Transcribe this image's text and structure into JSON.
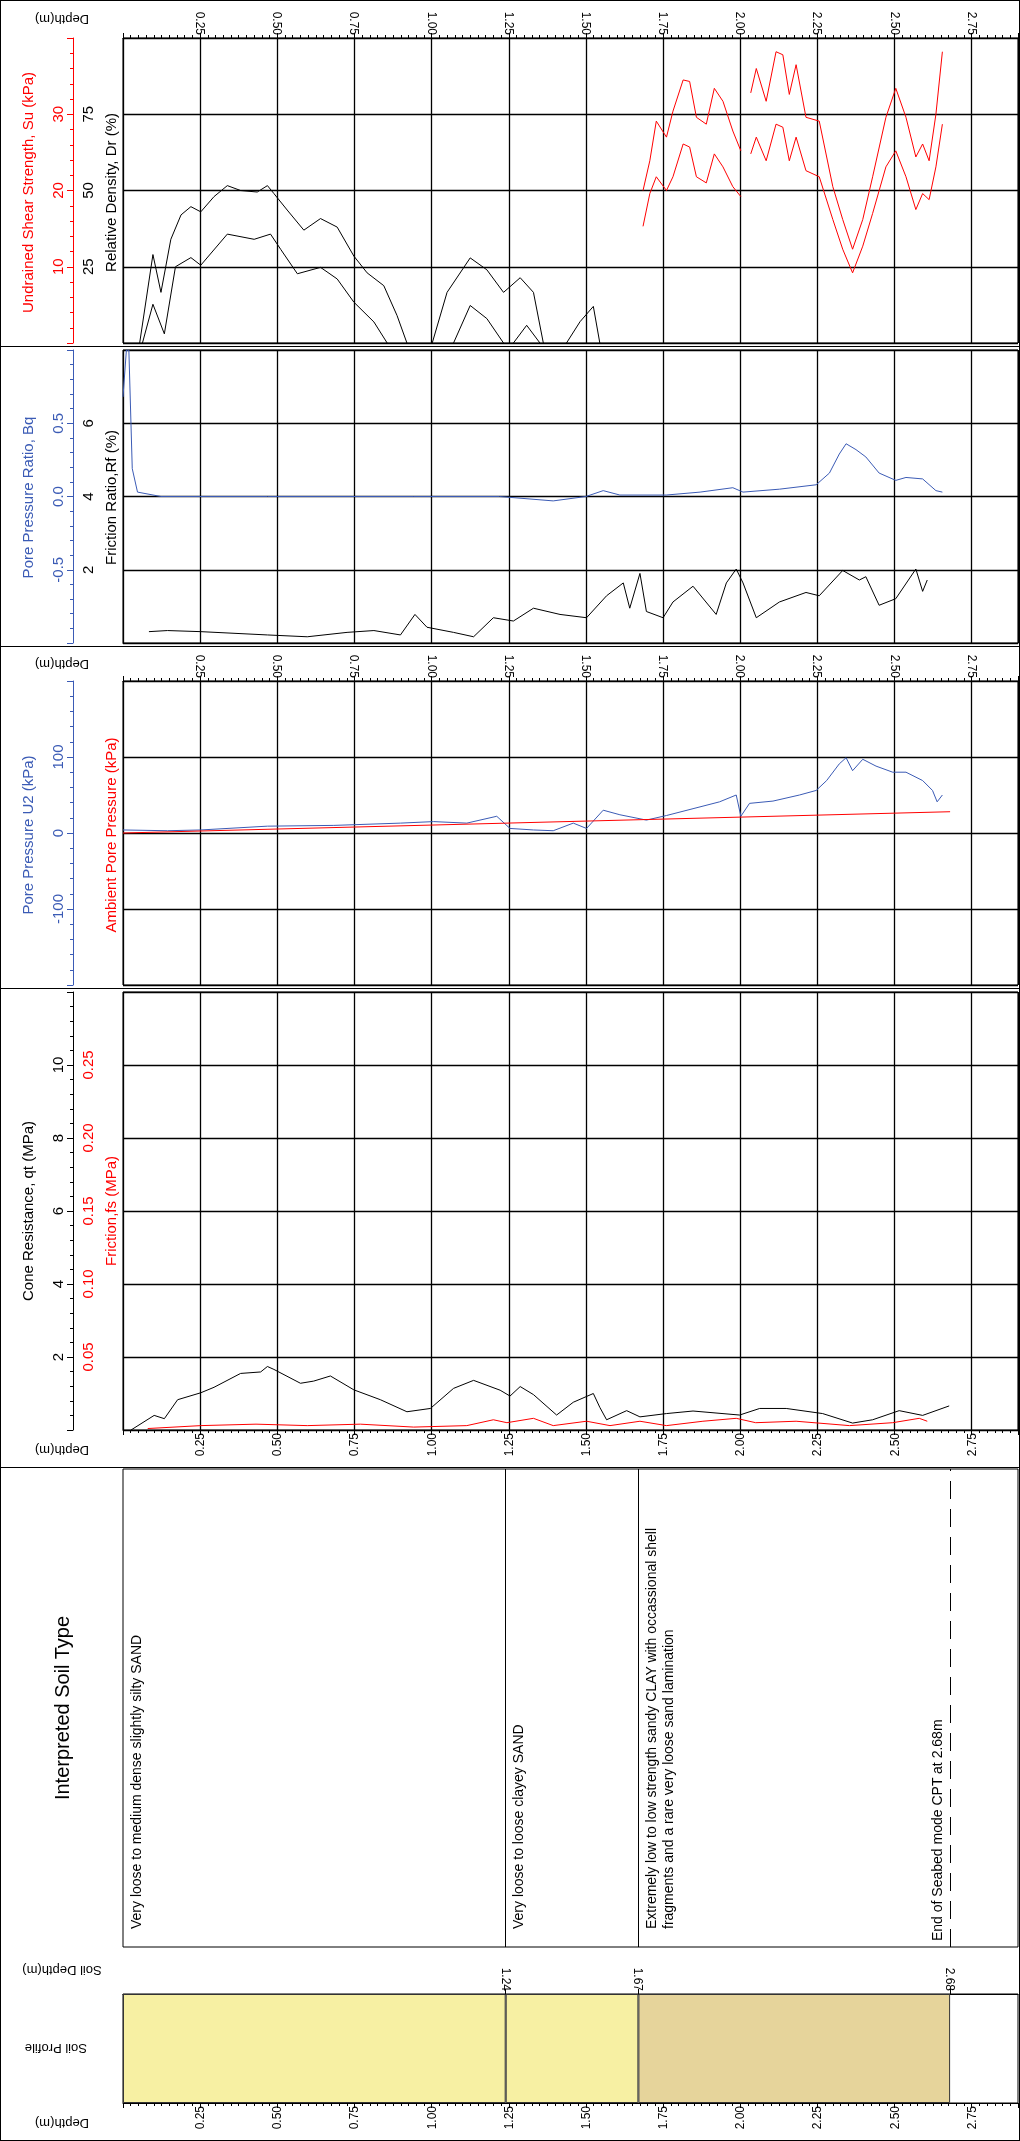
{
  "chart_data": [
    {
      "type": "line",
      "xlabel": "Depth(m)",
      "ylabel": "Relative Density, Dr (%)",
      "y2label": "Undrained Shear Strength, Su (kPa)",
      "xlim": [
        0,
        2.9
      ],
      "xticks": [
        0.25,
        {
          "value": 0.5,
          "label": "0.50"
        },
        0.75,
        {
          "value": 1,
          "label": "1.00"
        },
        1.25,
        {
          "value": 1.5,
          "label": "1.50"
        },
        1.75,
        {
          "value": 2,
          "label": "2.00"
        },
        2.25,
        {
          "value": 2.5,
          "label": "2.50"
        },
        2.75
      ],
      "ylim": [
        0,
        100
      ],
      "yticks": [
        25,
        50,
        75
      ],
      "y2lim": [
        0,
        40
      ],
      "y2ticks": [
        10,
        20,
        30
      ],
      "grid": true,
      "series": [
        {
          "color": "#000000",
          "x": [
            0.054,
            0.097,
            0.123,
            0.155,
            0.188,
            0.22,
            0.252,
            0.295,
            0.338,
            0.381,
            0.435,
            0.468,
            0.489,
            0.532,
            0.586,
            0.64,
            0.694,
            0.748,
            0.791,
            0.845,
            0.888,
            0.92,
            0.96,
            1.002,
            1.05,
            1.125,
            1.179,
            1.233,
            1.287,
            1.33,
            1.362,
            1.4,
            1.437,
            1.481,
            1.524,
            1.545
          ],
          "values": [
            0,
            29,
            16.6,
            34,
            42,
            44.7,
            43,
            48,
            51.6,
            50,
            49.5,
            51.6,
            49,
            43.6,
            37,
            40.8,
            38,
            28.5,
            23,
            18.8,
            9,
            0,
            null,
            0,
            16.6,
            27.9,
            24,
            16.6,
            21.4,
            16.6,
            0,
            null,
            0,
            7,
            12,
            0
          ]
        },
        {
          "color": "#000000",
          "x": [
            0.063,
            0.097,
            0.134,
            0.17,
            0.22,
            0.252,
            0.338,
            0.425,
            0.478,
            0.511,
            0.565,
            0.64,
            0.694,
            0.748,
            0.813,
            0.856,
            0.95,
            1.071,
            1.125,
            1.179,
            1.233,
            1.25,
            1.265,
            1.308,
            1.351
          ],
          "values": [
            0,
            12.7,
            3,
            25,
            28,
            25.5,
            35.7,
            34,
            35.7,
            30.7,
            22.7,
            24.8,
            21,
            13.4,
            6.9,
            0,
            null,
            0,
            12.3,
            8,
            0,
            null,
            0,
            5.8,
            0
          ]
        },
        {
          "color": "#ff0000",
          "axis": "y2",
          "x": [
            1.685,
            1.707,
            1.728,
            1.761,
            1.782,
            1.815,
            1.836,
            1.858,
            1.89,
            1.916,
            1.944,
            1.976,
            2.002,
            2.018,
            2.034,
            2.052,
            2.084,
            2.116,
            2.138,
            2.159,
            2.181,
            2.213,
            2.256,
            2.3,
            2.332,
            2.364,
            2.397,
            2.429,
            2.472,
            2.504,
            2.537,
            2.569,
            2.591,
            2.612,
            2.634,
            2.655
          ],
          "values": [
            20,
            23.9,
            29.1,
            27,
            30.4,
            34.5,
            34.3,
            29.6,
            28.7,
            33.4,
            31.7,
            27.8,
            25.2,
            null,
            32.8,
            36,
            31.7,
            38.2,
            37.8,
            32.6,
            36.5,
            29.6,
            29.1,
            20.5,
            16.2,
            12.3,
            16.2,
            21.8,
            29.6,
            33.4,
            29.6,
            24.4,
            26.1,
            23.9,
            30,
            38.2
          ]
        },
        {
          "color": "#ff0000",
          "axis": "y2",
          "x": [
            1.685,
            1.707,
            1.728,
            1.761,
            1.782,
            1.815,
            1.836,
            1.858,
            1.89,
            1.916,
            1.944,
            1.976,
            2.002,
            2.018,
            2.034,
            2.052,
            2.084,
            2.116,
            2.138,
            2.159,
            2.181,
            2.213,
            2.256,
            2.3,
            2.332,
            2.364,
            2.397,
            2.429,
            2.472,
            2.504,
            2.537,
            2.569,
            2.591,
            2.612,
            2.634,
            2.655
          ],
          "values": [
            15.3,
            19.6,
            21.8,
            20,
            21.8,
            26.1,
            25.7,
            21.8,
            21,
            24.8,
            23.1,
            20.5,
            19.2,
            null,
            24.8,
            27,
            23.9,
            28.7,
            28.3,
            23.9,
            27,
            22.6,
            21.8,
            16.2,
            12.3,
            9.2,
            12.7,
            17,
            23.1,
            25.2,
            21.8,
            17.5,
            19.6,
            18.8,
            23.1,
            28.7
          ]
        }
      ]
    },
    {
      "type": "line",
      "ylabel": "Friction Ratio,Rf (%)",
      "y2label": "Pore Pressure Ratio, Bq",
      "xlim": [
        0,
        2.9
      ],
      "xticks": [
        0.25,
        0.5,
        0.75,
        1,
        1.25,
        1.5,
        1.75,
        2,
        2.25,
        2.5,
        2.75
      ],
      "ylim": [
        0,
        8
      ],
      "yticks": [
        2,
        4,
        6
      ],
      "y2lim": [
        -1,
        1
      ],
      "y2ticks": [
        -0.5,
        {
          "value": 0,
          "label": "0.0"
        },
        0.5
      ],
      "grid": true,
      "tick_labels": "y",
      "series": [
        {
          "color": "#000000",
          "x": [
            0.084,
            0.144,
            0.252,
            0.468,
            0.597,
            0.726,
            0.813,
            0.899,
            0.946,
            0.985,
            1.071,
            1.136,
            1.2,
            1.265,
            1.33,
            1.416,
            1.502,
            1.567,
            1.621,
            1.642,
            1.675,
            1.696,
            1.75,
            1.782,
            1.847,
            1.922,
            1.955,
            1.987,
            2.009,
            2.052,
            2.127,
            2.213,
            2.256,
            2.332,
            2.386,
            2.407,
            2.45,
            2.504,
            2.569,
            2.591,
            2.606
          ],
          "values": [
            0.31,
            0.34,
            0.31,
            0.22,
            0.17,
            0.29,
            0.34,
            0.22,
            0.78,
            0.43,
            0.29,
            0.17,
            0.69,
            0.6,
            0.95,
            0.78,
            0.69,
            1.29,
            1.64,
            0.95,
            1.9,
            0.86,
            0.69,
            1.12,
            1.55,
            0.78,
            1.64,
            2.02,
            1.64,
            0.69,
            1.12,
            1.38,
            1.29,
            1.98,
            1.72,
            1.81,
            1.03,
            1.21,
            2.02,
            1.41,
            1.72
          ]
        },
        {
          "color": "#3b5bb5",
          "axis": "y2",
          "x": [
            0,
            0.011,
            0.019,
            0.03,
            0.047,
            0.123,
            0.468,
            0.94,
            1.22,
            1.394,
            1.5,
            1.556,
            1.61,
            1.76,
            1.87,
            1.976,
            2.009,
            2.127,
            2.246,
            2.289,
            2.321,
            2.343,
            2.375,
            2.407,
            2.45,
            2.504,
            2.537,
            2.591,
            2.634,
            2.655
          ],
          "values": [
            0.68,
            1,
            1,
            0.19,
            0.03,
            0,
            0,
            0,
            0,
            -0.03,
            0,
            0.04,
            0.01,
            0.01,
            0.03,
            0.06,
            0.03,
            0.05,
            0.08,
            0.16,
            0.29,
            0.36,
            0.32,
            0.27,
            0.16,
            0.11,
            0.13,
            0.12,
            0.04,
            0.03
          ]
        }
      ]
    },
    {
      "type": "line",
      "xlabel": "Depth(m)",
      "ylabel": "Pore Pressure U2 (kPa)",
      "xlim": [
        0,
        2.9
      ],
      "xticks": [
        0.25,
        {
          "value": 0.5,
          "label": "0.50"
        },
        0.75,
        {
          "value": 1,
          "label": "1.00"
        },
        1.25,
        {
          "value": 1.5,
          "label": "1.50"
        },
        1.75,
        {
          "value": 2,
          "label": "2.00"
        },
        2.25,
        {
          "value": 2.5,
          "label": "2.50"
        },
        2.75
      ],
      "ylim": [
        -200,
        200
      ],
      "yticks": [
        -100,
        0,
        100
      ],
      "grid": true,
      "series": [
        {
          "color": "#3b5bb5",
          "x": [
            0,
            0.144,
            0.252,
            0.468,
            0.683,
            0.899,
            1.006,
            1.114,
            1.211,
            1.254,
            1.33,
            1.394,
            1.459,
            1.502,
            1.556,
            1.61,
            1.696,
            1.761,
            1.847,
            1.933,
            1.987,
            2.002,
            2.03,
            2.106,
            2.192,
            2.246,
            2.28,
            2.321,
            2.343,
            2.364,
            2.397,
            2.44,
            2.494,
            2.537,
            2.591,
            2.623,
            2.638,
            2.655
          ],
          "values": [
            4,
            3,
            4,
            9,
            10,
            13,
            15,
            13,
            22,
            6,
            4,
            3,
            13,
            6,
            30,
            24,
            17,
            23,
            32,
            41,
            50,
            22,
            39,
            42,
            50,
            56,
            69,
            91,
            99,
            82,
            97,
            88,
            80,
            80,
            69,
            56,
            41,
            50
          ]
        },
        {
          "name": "Ambient Pore Pressure (kPa)",
          "color": "#ff0000",
          "x": [
            0,
            2.68
          ],
          "values": [
            0,
            28
          ]
        }
      ]
    },
    {
      "type": "line",
      "xlabel": "Depth(m)",
      "ylabel": "Cone Resistance, qt (MPa)",
      "y2label": "Friction,fs (MPa)",
      "xlim": [
        0,
        2.9
      ],
      "xticks": [
        0.25,
        {
          "value": 0.5,
          "label": "0.50"
        },
        0.75,
        {
          "value": 1,
          "label": "1.00"
        },
        1.25,
        {
          "value": 1.5,
          "label": "1.50"
        },
        1.75,
        {
          "value": 2,
          "label": "2.00"
        },
        2.25,
        {
          "value": 2.5,
          "label": "2.50"
        },
        2.75
      ],
      "ylim": [
        0,
        12
      ],
      "yticks": [
        2,
        4,
        6,
        8,
        10
      ],
      "y2lim": [
        0,
        0.3
      ],
      "y2ticks": [
        0.05,
        {
          "value": 0.1,
          "label": "0.10"
        },
        0.15,
        {
          "value": 0.2,
          "label": "0.20"
        },
        0.25
      ],
      "grid": true,
      "series": [
        {
          "color": "#ff0000",
          "axis": "y2",
          "x": [
            0.08,
            0.252,
            0.431,
            0.597,
            0.769,
            0.942,
            1.114,
            1.2,
            1.244,
            1.33,
            1.394,
            1.502,
            1.578,
            1.675,
            1.761,
            1.879,
            1.987,
            2.05,
            2.181,
            2.354,
            2.494,
            2.58,
            2.606
          ],
          "values": [
            0.001,
            0.003,
            0.004,
            0.003,
            0.004,
            0.002,
            0.003,
            0.007,
            0.005,
            0.008,
            0.003,
            0.006,
            0.003,
            0.006,
            0.003,
            0.006,
            0.008,
            0.005,
            0.006,
            0.003,
            0.005,
            0.008,
            0.006
          ]
        },
        {
          "color": "#000000",
          "x": [
            0.026,
            0.101,
            0.134,
            0.177,
            0.252,
            0.295,
            0.381,
            0.446,
            0.468,
            0.489,
            0.575,
            0.618,
            0.672,
            0.748,
            0.834,
            0.92,
            0.996,
            1.071,
            1.136,
            1.222,
            1.254,
            1.287,
            1.33,
            1.405,
            1.459,
            1.524,
            1.545,
            1.567,
            1.632,
            1.675,
            1.761,
            1.847,
            1.998,
            2.063,
            2.149,
            2.267,
            2.364,
            2.429,
            2.515,
            2.591,
            2.677
          ],
          "values": [
            0,
            0.4,
            0.31,
            0.83,
            1.02,
            1.17,
            1.55,
            1.59,
            1.74,
            1.66,
            1.28,
            1.34,
            1.48,
            1.1,
            0.83,
            0.5,
            0.59,
            1.14,
            1.36,
            1.09,
            0.93,
            1.19,
            0.97,
            0.41,
            0.76,
            1.0,
            0.62,
            0.28,
            0.53,
            0.36,
            0.45,
            0.52,
            0.41,
            0.59,
            0.59,
            0.45,
            0.19,
            0.28,
            0.53,
            0.4,
            0.66
          ]
        }
      ]
    },
    {
      "type": "bar",
      "orientation": "horizontal",
      "stacked": true,
      "title": "Interpreted Soil Type",
      "categories": [
        "Soil Profile"
      ],
      "xlabel": "Depth(m)",
      "xlim": [
        0,
        2.9
      ],
      "xticks": [
        0.25,
        {
          "value": 0.5,
          "label": "0.50"
        },
        0.75,
        {
          "value": 1,
          "label": "1.00"
        },
        1.25,
        {
          "value": 1.5,
          "label": "1.50"
        },
        1.75,
        {
          "value": 2,
          "label": "2.00"
        },
        2.25,
        {
          "value": 2.5,
          "label": "2.50"
        },
        2.75
      ],
      "x2label": "Soil Depth(m)",
      "x2lim": [
        0,
        2.9
      ],
      "x2ticks": [
        1.24,
        1.67,
        2.68
      ],
      "series": [
        {
          "color": "#f7f0a3",
          "values": [
            1.24
          ]
        },
        {
          "color": "#f7f0a3",
          "values": [
            0.43
          ]
        },
        {
          "color": "#e6d49b",
          "values": [
            1.01
          ]
        }
      ],
      "annotations": [
        "Very loose to medium dense slightly silty SAND",
        "Very loose to loose clayey SAND",
        "Extremely low to low strength sandy CLAY with occassional shell fragments and a rare very loose sand lamination"
      ],
      "ref_lines": [
        {
          "axis": "x",
          "value": 2.68,
          "label": "End of Seabed mode CPT at 2.68m",
          "line_style": "dashed"
        }
      ]
    }
  ]
}
